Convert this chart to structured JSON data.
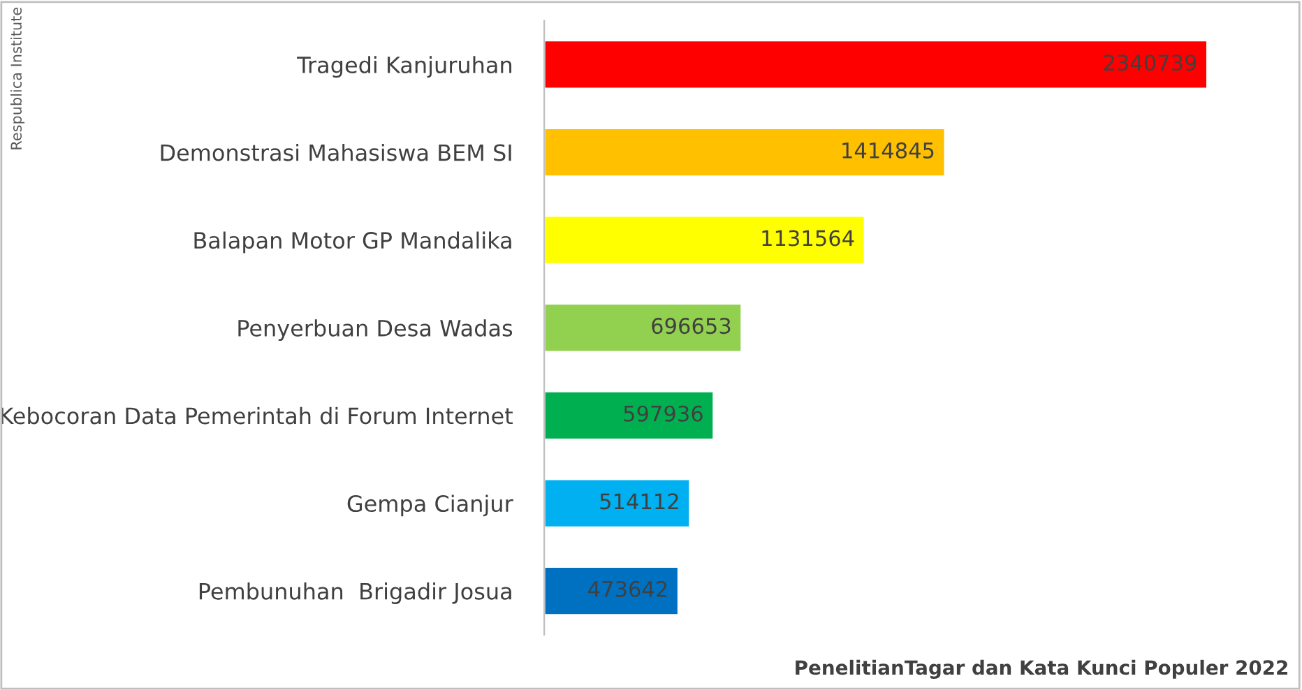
{
  "chart_data": {
    "type": "bar",
    "orientation": "horizontal",
    "categories": [
      "Tragedi Kanjuruhan",
      "Demonstrasi Mahasiswa BEM SI",
      "Balapan Motor GP Mandalika",
      "Penyerbuan Desa Wadas",
      "Kebocoran Data Pemerintah di Forum Internet",
      "Gempa Cianjur",
      "Pembunuhan  Brigadir Josua"
    ],
    "values": [
      2340739,
      1414845,
      1131564,
      696653,
      597936,
      514112,
      473642
    ],
    "colors": [
      "#ff0000",
      "#ffc000",
      "#ffff00",
      "#92d050",
      "#00b050",
      "#00b0f0",
      "#0070c0"
    ],
    "data_labels": true,
    "grid": false,
    "legend": false,
    "tick_labels": "y",
    "annotations": [
      "Respublica Institute",
      "PenelitianTagar dan Kata Kunci Populer 2022"
    ]
  }
}
